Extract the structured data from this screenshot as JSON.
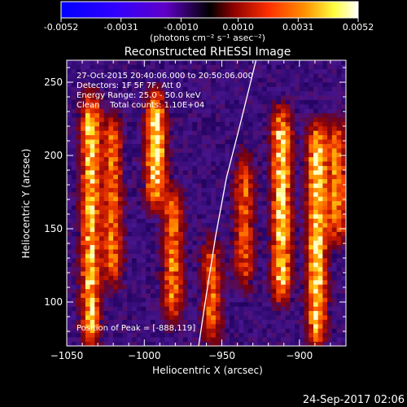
{
  "chart_data": {
    "type": "heatmap",
    "title": "Reconstructed RHESSI Image",
    "xlabel": "Heliocentric X (arcsec)",
    "ylabel": "Heliocentric Y (arcsec)",
    "xlim": [
      -1050,
      -870
    ],
    "ylim": [
      70,
      265
    ],
    "x_ticks": [
      -1050,
      -1000,
      -950,
      -900
    ],
    "y_ticks": [
      100,
      150,
      200,
      250
    ],
    "colorbar": {
      "min": -0.0052,
      "max": 0.0052,
      "tick_values": [
        -0.0052,
        -0.0031,
        -0.001,
        0.001,
        0.0031,
        0.0052
      ],
      "tick_labels": [
        "-0.0052",
        "-0.0031",
        "-0.0010",
        "0.0010",
        "0.0031",
        "0.0052"
      ],
      "unit_label": "(photons cm⁻² s⁻¹ asec⁻²)",
      "colors": [
        "#0000ff",
        "#5a00c8",
        "#000000",
        "#8c0000",
        "#ff3000",
        "#ff9000",
        "#ffff40",
        "#ffffff"
      ]
    },
    "annotations": {
      "time_range": "27-Oct-2015 20:40:06.000 to 20:50:06.000",
      "detectors": "Detectors: 1F 5F 7F, Att 0",
      "energy": "Energy Range: 25.0 - 50.0 keV",
      "clean": "Clean    Total counts: 1.10E+04",
      "peak": "Position of Peak = [-888,119]"
    },
    "limb_curve": [
      [
        -965,
        70
      ],
      [
        -960,
        105
      ],
      [
        -954,
        145
      ],
      [
        -947,
        185
      ],
      [
        -938,
        222
      ],
      [
        -928,
        265
      ]
    ],
    "bright_stripes": [
      {
        "x": -1036,
        "y_range": [
          70,
          240
        ],
        "intensity": 0.85
      },
      {
        "x": -1022,
        "y_range": [
          110,
          225
        ],
        "intensity": 0.6
      },
      {
        "x": -994,
        "y_range": [
          165,
          240
        ],
        "intensity": 1.0
      },
      {
        "x": -983,
        "y_range": [
          85,
          175
        ],
        "intensity": 0.65
      },
      {
        "x": -958,
        "y_range": [
          70,
          140
        ],
        "intensity": 0.6
      },
      {
        "x": -937,
        "y_range": [
          110,
          200
        ],
        "intensity": 0.55
      },
      {
        "x": -913,
        "y_range": [
          100,
          230
        ],
        "intensity": 0.9
      },
      {
        "x": -890,
        "y_range": [
          70,
          220
        ],
        "intensity": 0.95
      },
      {
        "x": -877,
        "y_range": [
          140,
          220
        ],
        "intensity": 0.7
      }
    ]
  },
  "footer": {
    "date": "24-Sep-2017 02:06"
  }
}
